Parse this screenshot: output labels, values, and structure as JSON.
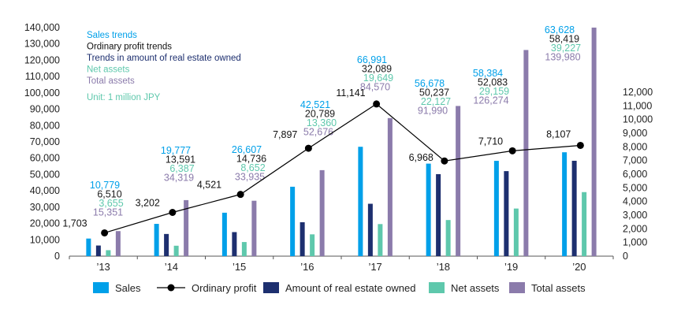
{
  "colors": {
    "sales": "#00a0e9",
    "ordinary_profit": "#000000",
    "real_estate": "#1d2f6f",
    "net_assets": "#5ec8ac",
    "total_assets": "#8b7bab",
    "axis": "#333333"
  },
  "chart_data": {
    "type": "bar",
    "title_lines": [
      {
        "text": "Sales trends",
        "series": "sales"
      },
      {
        "text": "Ordinary profit trends",
        "series": "ordinary_profit"
      },
      {
        "text": "Trends in amount of real estate owned",
        "series": "real_estate"
      },
      {
        "text": "Net assets",
        "series": "net_assets"
      },
      {
        "text": "Total assets",
        "series": "total_assets"
      }
    ],
    "unit_note": "Unit: 1 million JPY",
    "categories": [
      "’13",
      "’14",
      "’15",
      "’16",
      "’17",
      "’18",
      "’19",
      "’20"
    ],
    "ylim_left": [
      0,
      140000
    ],
    "yticks_left": [
      "0",
      "10,000",
      "20,000",
      "30,000",
      "40,000",
      "50,000",
      "60,000",
      "70,000",
      "80,000",
      "90,000",
      "100,000",
      "110,000",
      "120,000",
      "130,000",
      "140,000"
    ],
    "ylim_right": [
      0,
      12000
    ],
    "yticks_right": [
      "0",
      "1,000",
      "2,000",
      "3,000",
      "4,000",
      "5,000",
      "6,000",
      "7,000",
      "8,000",
      "9,000",
      "10,000",
      "11,000",
      "12,000"
    ],
    "series": [
      {
        "key": "sales",
        "name": "Sales",
        "axis": "left",
        "values": [
          10779,
          19777,
          26607,
          42521,
          66991,
          56678,
          58384,
          63628
        ],
        "labels": [
          "10,779",
          "19,777",
          "26,607",
          "42,521",
          "66,991",
          "56,678",
          "58,384",
          "63,628"
        ]
      },
      {
        "key": "real_estate",
        "name": "Amount of real estate owned",
        "axis": "left",
        "values": [
          6510,
          13591,
          14736,
          20789,
          32089,
          50237,
          52083,
          58419
        ],
        "labels": [
          "6,510",
          "13,591",
          "14,736",
          "20,789",
          "32,089",
          "50,237",
          "52,083",
          "58,419"
        ]
      },
      {
        "key": "net_assets",
        "name": "Net assets",
        "axis": "left",
        "values": [
          3655,
          6387,
          8652,
          13360,
          19649,
          22127,
          29159,
          39227
        ],
        "labels": [
          "3,655",
          "6,387",
          "8,652",
          "13,360",
          "19,649",
          "22,127",
          "29,159",
          "39,227"
        ]
      },
      {
        "key": "total_assets",
        "name": "Total assets",
        "axis": "left",
        "values": [
          15351,
          34319,
          33935,
          52676,
          84570,
          91990,
          126274,
          139980
        ],
        "labels": [
          "15,351",
          "34,319",
          "33,935",
          "52,676",
          "84,570",
          "91,990",
          "126,274",
          "139,980"
        ]
      }
    ],
    "line": {
      "key": "ordinary_profit",
      "name": "Ordinary profit",
      "axis": "right",
      "values": [
        1703,
        3202,
        4521,
        7897,
        11141,
        6968,
        7710,
        8107
      ],
      "labels": [
        "1,703",
        "3,202",
        "4,521",
        "7,897",
        "11,141",
        "6,968",
        "7,710",
        "8,107"
      ]
    },
    "legend": [
      {
        "key": "sales",
        "label": "Sales",
        "kind": "box"
      },
      {
        "key": "ordinary_profit",
        "label": "Ordinary profit",
        "kind": "line"
      },
      {
        "key": "real_estate",
        "label": "Amount of real estate owned",
        "kind": "box"
      },
      {
        "key": "net_assets",
        "label": "Net assets",
        "kind": "box"
      },
      {
        "key": "total_assets",
        "label": "Total assets",
        "kind": "box"
      }
    ]
  }
}
